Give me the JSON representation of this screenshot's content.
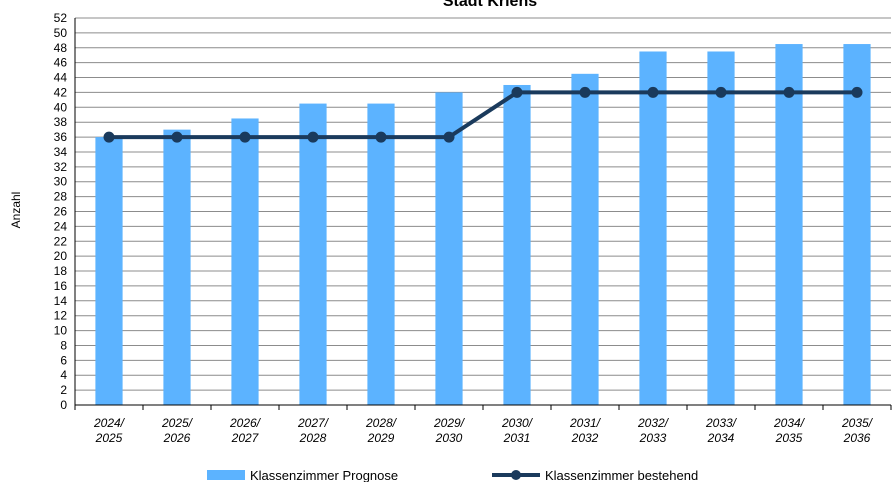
{
  "chart_data": {
    "type": "bar",
    "title": "Stadt Kriens",
    "ylabel": "Anzahl",
    "xlabel": "",
    "ylim": [
      0,
      52
    ],
    "ytick_step": 2,
    "grid": true,
    "legend_position": "bottom",
    "categories": [
      [
        "2024/",
        "2025"
      ],
      [
        "2025/",
        "2026"
      ],
      [
        "2026/",
        "2027"
      ],
      [
        "2027/",
        "2028"
      ],
      [
        "2028/",
        "2029"
      ],
      [
        "2029/",
        "2030"
      ],
      [
        "2030/",
        "2031"
      ],
      [
        "2031/",
        "2032"
      ],
      [
        "2032/",
        "2033"
      ],
      [
        "2033/",
        "2034"
      ],
      [
        "2034/",
        "2035"
      ],
      [
        "2035/",
        "2036"
      ]
    ],
    "series": [
      {
        "name": "Klassenzimmer Prognose",
        "kind": "bar",
        "color": "#5cb3ff",
        "values": [
          36,
          37,
          38.5,
          40.5,
          40.5,
          42,
          43,
          44.5,
          47.5,
          47.5,
          48.5,
          48.5
        ]
      },
      {
        "name": "Klassenzimmer bestehend",
        "kind": "line",
        "color": "#1a3a5c",
        "values": [
          36,
          36,
          36,
          36,
          36,
          36,
          42,
          42,
          42,
          42,
          42,
          42
        ]
      }
    ]
  }
}
